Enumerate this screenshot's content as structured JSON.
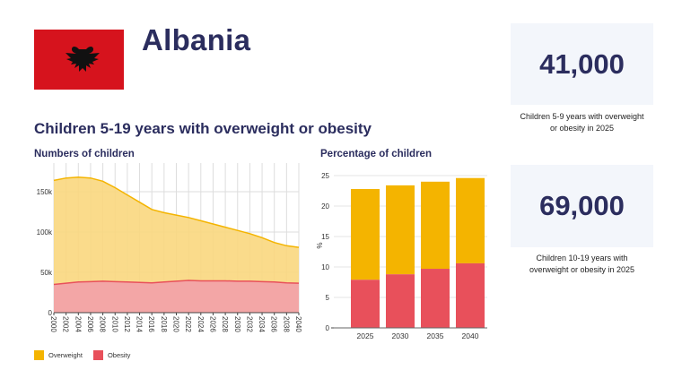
{
  "header": {
    "country": "Albania",
    "flag_icon": "albania-flag"
  },
  "section_title": "Children 5-19 years with overweight or obesity",
  "stats": [
    {
      "value": "41,000",
      "caption_line1": "Children 5-9 years with overweight",
      "caption_line2": "or obesity in 2025"
    },
    {
      "value": "69,000",
      "caption_line1": "Children 10-19 years with",
      "caption_line2": "overweight or obesity in 2025"
    }
  ],
  "legend": [
    {
      "label": "Overweight",
      "color": "#f4b400"
    },
    {
      "label": "Obesity",
      "color": "#e8505b"
    }
  ],
  "chart_data": [
    {
      "type": "area",
      "title": "Numbers of children",
      "xlabel": "",
      "ylabel": "",
      "ylim": [
        0,
        170000
      ],
      "yticks": [
        0,
        50000,
        100000,
        150000
      ],
      "ytick_labels": [
        "0",
        "50k",
        "100k",
        "150k"
      ],
      "grid": true,
      "x": [
        2000,
        2002,
        2004,
        2006,
        2008,
        2010,
        2012,
        2014,
        2016,
        2018,
        2020,
        2022,
        2024,
        2026,
        2028,
        2030,
        2032,
        2034,
        2036,
        2038,
        2040
      ],
      "xtick_labels": [
        "2000",
        "2002",
        "2004",
        "2006",
        "2008",
        "2010",
        "2012",
        "2014",
        "2016",
        "2018",
        "2020",
        "2022",
        "2024",
        "2026",
        "2028",
        "2030",
        "2032",
        "2034",
        "2036",
        "2038",
        "2040"
      ],
      "stacked": true,
      "series": [
        {
          "name": "Obesity",
          "color": "#e8505b",
          "fill": "#f2a3a8",
          "values": [
            35000,
            36500,
            38000,
            38500,
            39000,
            38500,
            38000,
            37500,
            37000,
            38000,
            39000,
            40000,
            39500,
            39500,
            39500,
            39000,
            39000,
            38500,
            38000,
            37000,
            36500
          ]
        },
        {
          "name": "Overweight",
          "color": "#f4b400",
          "fill": "#f9d77e",
          "values": [
            129000,
            130500,
            130000,
            128500,
            124000,
            116500,
            108000,
            99500,
            91000,
            86000,
            82000,
            78000,
            74500,
            70500,
            66500,
            63000,
            59000,
            54500,
            49000,
            46000,
            44500
          ]
        }
      ]
    },
    {
      "type": "bar",
      "title": "Percentage of children",
      "xlabel": "",
      "ylabel": "%",
      "ylim": [
        0,
        25
      ],
      "yticks": [
        0,
        5,
        10,
        15,
        20,
        25
      ],
      "ytick_labels": [
        "0",
        "5",
        "10",
        "15",
        "20",
        "25"
      ],
      "grid": true,
      "stacked": true,
      "categories": [
        "2025",
        "2030",
        "2035",
        "2040"
      ],
      "series": [
        {
          "name": "Obesity",
          "color": "#e8505b",
          "values": [
            7.9,
            8.8,
            9.7,
            10.6
          ]
        },
        {
          "name": "Overweight",
          "color": "#f4b400",
          "values": [
            14.9,
            14.6,
            14.3,
            14.0
          ]
        }
      ]
    }
  ]
}
